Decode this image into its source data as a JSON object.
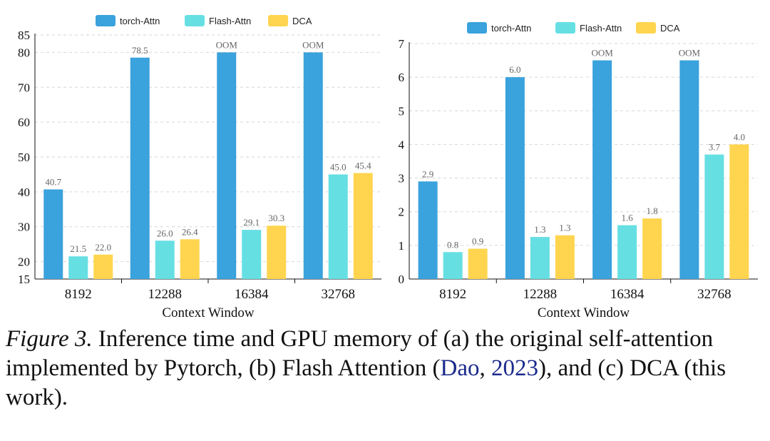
{
  "legend": [
    "torch-Attn",
    "Flash-Attn",
    "DCA"
  ],
  "colors": {
    "torch-Attn": "#3aa2dc",
    "Flash-Attn": "#66dfe3",
    "DCA": "#ffd54f"
  },
  "chart_data": [
    {
      "type": "bar",
      "categories": [
        "8192",
        "12288",
        "16384",
        "32768"
      ],
      "series": [
        {
          "name": "torch-Attn",
          "values": [
            40.7,
            78.5,
            80,
            80
          ],
          "labels": [
            "40.7",
            "78.5",
            "OOM",
            "OOM"
          ]
        },
        {
          "name": "Flash-Attn",
          "values": [
            21.5,
            26.0,
            29.1,
            45.0
          ],
          "labels": [
            "21.5",
            "26.0",
            "29.1",
            "45.0"
          ]
        },
        {
          "name": "DCA",
          "values": [
            22.0,
            26.4,
            30.3,
            45.4
          ],
          "labels": [
            "22.0",
            "26.4",
            "30.3",
            "45.4"
          ]
        }
      ],
      "xlabel": "Context Window",
      "ylabel": "",
      "ylim": [
        15,
        85
      ],
      "yticks": [
        "15",
        "20",
        "30",
        "40",
        "50",
        "60",
        "70",
        "80",
        "85"
      ],
      "grid": true,
      "legend_position": "top"
    },
    {
      "type": "bar",
      "categories": [
        "8192",
        "12288",
        "16384",
        "32768"
      ],
      "series": [
        {
          "name": "torch-Attn",
          "values": [
            2.9,
            6.0,
            6.5,
            6.5
          ],
          "labels": [
            "2.9",
            "6.0",
            "OOM",
            "OOM"
          ]
        },
        {
          "name": "Flash-Attn",
          "values": [
            0.8,
            1.25,
            1.6,
            3.7
          ],
          "labels": [
            "0.8",
            "1.3",
            "1.6",
            "3.7"
          ]
        },
        {
          "name": "DCA",
          "values": [
            0.9,
            1.3,
            1.8,
            4.0
          ],
          "labels": [
            "0.9",
            "1.3",
            "1.8",
            "4.0"
          ]
        }
      ],
      "xlabel": "Context Window",
      "ylabel": "",
      "ylim": [
        0,
        7
      ],
      "yticks": [
        "0",
        "1",
        "2",
        "3",
        "4",
        "5",
        "6",
        "7"
      ],
      "grid": true,
      "legend_position": "top"
    }
  ],
  "caption": {
    "label": "Figure 3.",
    "text_before": " Inference time and GPU memory of (a) the original self-attention implemented by Pytorch, (b) Flash Attention (",
    "cite_author": "Dao",
    "cite_sep": ", ",
    "cite_year": "2023",
    "text_after": "), and (c) DCA (this work)."
  }
}
